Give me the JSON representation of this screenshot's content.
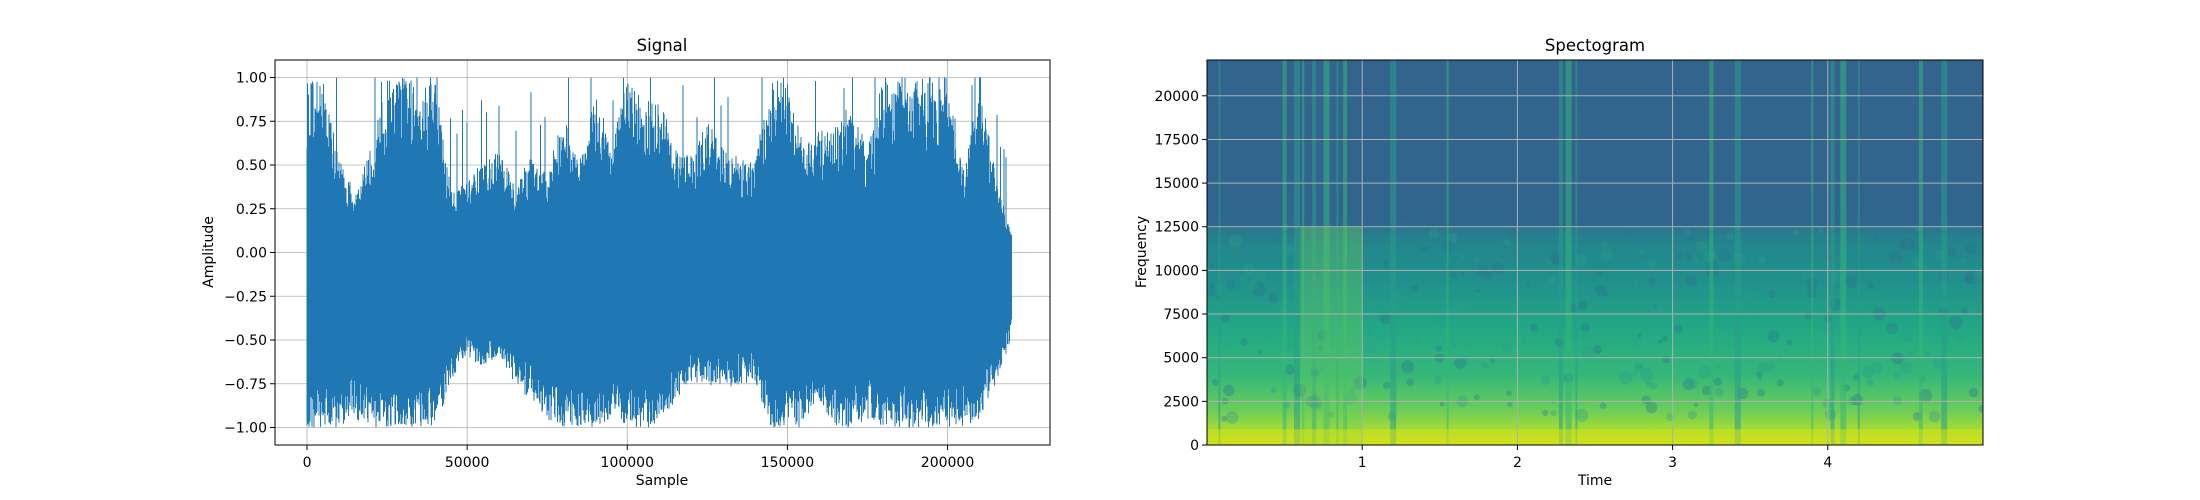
{
  "chart_data": [
    {
      "type": "line",
      "title": "Signal",
      "xlabel": "Sample",
      "ylabel": "Amplitude",
      "xlim": [
        -10000,
        232000
      ],
      "ylim": [
        -1.1,
        1.1
      ],
      "grid": true,
      "color": "#1f77b4",
      "x_ticks": [
        {
          "value": 0,
          "label": "0"
        },
        {
          "value": 50000,
          "label": "50000"
        },
        {
          "value": 100000,
          "label": "100000"
        },
        {
          "value": 150000,
          "label": "150000"
        },
        {
          "value": 200000,
          "label": "200000"
        }
      ],
      "y_ticks": [
        {
          "value": 1.0,
          "label": "1.00"
        },
        {
          "value": 0.75,
          "label": "0.75"
        },
        {
          "value": 0.5,
          "label": "0.50"
        },
        {
          "value": 0.25,
          "label": "0.25"
        },
        {
          "value": 0.0,
          "label": "0.00"
        },
        {
          "value": -0.25,
          "label": "−0.25"
        },
        {
          "value": -0.5,
          "label": "−0.50"
        },
        {
          "value": -0.75,
          "label": "−0.75"
        },
        {
          "value": -1.0,
          "label": "−1.00"
        }
      ],
      "envelope": {
        "sample": [
          0,
          5000,
          10000,
          15000,
          20000,
          25000,
          30000,
          35000,
          40000,
          45000,
          50000,
          55000,
          60000,
          65000,
          70000,
          75000,
          80000,
          85000,
          90000,
          95000,
          100000,
          105000,
          110000,
          115000,
          120000,
          125000,
          130000,
          135000,
          140000,
          145000,
          150000,
          155000,
          160000,
          165000,
          170000,
          175000,
          180000,
          185000,
          190000,
          195000,
          200000,
          205000,
          210000,
          215000,
          220000
        ],
        "max": [
          1.0,
          1.0,
          0.55,
          0.35,
          0.6,
          1.0,
          1.0,
          1.0,
          1.0,
          0.35,
          0.45,
          0.5,
          0.6,
          0.4,
          0.55,
          0.45,
          0.8,
          0.5,
          1.0,
          0.6,
          1.0,
          0.85,
          0.9,
          0.6,
          0.55,
          0.75,
          0.6,
          0.55,
          0.55,
          1.0,
          1.0,
          0.6,
          0.7,
          0.75,
          0.85,
          0.6,
          1.0,
          1.0,
          1.0,
          1.0,
          1.0,
          0.5,
          1.0,
          0.45,
          0.1
        ],
        "min": [
          -1.0,
          -1.0,
          -1.0,
          -0.95,
          -1.0,
          -1.0,
          -1.0,
          -1.0,
          -1.0,
          -0.75,
          -0.6,
          -0.65,
          -0.6,
          -0.75,
          -0.85,
          -0.95,
          -1.0,
          -1.0,
          -1.0,
          -0.95,
          -1.0,
          -1.0,
          -1.0,
          -0.85,
          -0.75,
          -0.75,
          -0.8,
          -0.75,
          -0.75,
          -1.0,
          -1.0,
          -1.0,
          -0.85,
          -1.0,
          -1.0,
          -0.95,
          -1.0,
          -1.0,
          -1.0,
          -1.0,
          -1.0,
          -1.0,
          -0.95,
          -0.75,
          -0.5
        ]
      }
    },
    {
      "type": "heatmap",
      "title": "Spectogram",
      "xlabel": "Time",
      "ylabel": "Frequency",
      "xlim": [
        0.0,
        5.0
      ],
      "ylim": [
        0,
        22050
      ],
      "grid": true,
      "colormap": "viridis",
      "x_ticks": [
        {
          "value": 1,
          "label": "1"
        },
        {
          "value": 2,
          "label": "2"
        },
        {
          "value": 3,
          "label": "3"
        },
        {
          "value": 4,
          "label": "4"
        }
      ],
      "y_ticks": [
        {
          "value": 0,
          "label": "0"
        },
        {
          "value": 2500,
          "label": "2500"
        },
        {
          "value": 5000,
          "label": "5000"
        },
        {
          "value": 7500,
          "label": "7500"
        },
        {
          "value": 10000,
          "label": "10000"
        },
        {
          "value": 12500,
          "label": "12500"
        },
        {
          "value": 15000,
          "label": "15000"
        },
        {
          "value": 17500,
          "label": "17500"
        },
        {
          "value": 20000,
          "label": "20000"
        }
      ],
      "broadband_events_time": [
        0.08,
        0.5,
        0.58,
        0.62,
        0.69,
        0.77,
        0.84,
        0.89,
        1.2,
        1.55,
        2.28,
        2.33,
        2.38,
        3.25,
        3.42,
        3.9,
        4.03,
        4.1,
        4.2,
        4.6,
        4.75
      ],
      "band_edge_frequency": 12500
    }
  ]
}
